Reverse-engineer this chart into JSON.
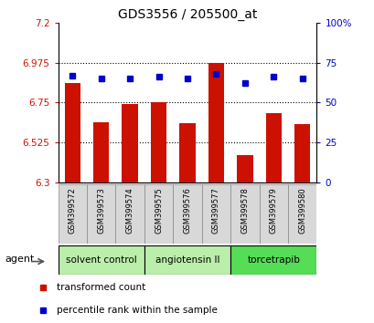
{
  "title": "GDS3556 / 205500_at",
  "samples": [
    "GSM399572",
    "GSM399573",
    "GSM399574",
    "GSM399575",
    "GSM399576",
    "GSM399577",
    "GSM399578",
    "GSM399579",
    "GSM399580"
  ],
  "bar_values": [
    6.86,
    6.64,
    6.74,
    6.75,
    6.635,
    6.975,
    6.455,
    6.69,
    6.63
  ],
  "percentile_values": [
    67,
    65,
    65,
    66,
    65,
    68,
    62,
    66,
    65
  ],
  "bar_color": "#cc1100",
  "dot_color": "#0000cc",
  "ylim_left": [
    6.3,
    7.2
  ],
  "ylim_right": [
    0,
    100
  ],
  "yticks_left": [
    6.3,
    6.525,
    6.75,
    6.975,
    7.2
  ],
  "ytick_labels_left": [
    "6.3",
    "6.525",
    "6.75",
    "6.975",
    "7.2"
  ],
  "yticks_right": [
    0,
    25,
    50,
    75,
    100
  ],
  "ytick_labels_right": [
    "0",
    "25",
    "50",
    "75",
    "100%"
  ],
  "hlines": [
    6.525,
    6.75,
    6.975
  ],
  "bar_bottom": 6.3,
  "tick_label_color_left": "#cc1100",
  "tick_label_color_right": "#0000cc",
  "background_color": "#ffffff",
  "plot_bg_color": "#ffffff",
  "group_data": [
    {
      "label": "solvent control",
      "start": 0,
      "end": 2,
      "color": "#bbeeaa"
    },
    {
      "label": "angiotensin II",
      "start": 3,
      "end": 5,
      "color": "#bbeeaa"
    },
    {
      "label": "torcetrapib",
      "start": 6,
      "end": 8,
      "color": "#55dd55"
    }
  ],
  "legend_items": [
    {
      "color": "#cc1100",
      "label": "transformed count"
    },
    {
      "color": "#0000cc",
      "label": "percentile rank within the sample"
    }
  ]
}
